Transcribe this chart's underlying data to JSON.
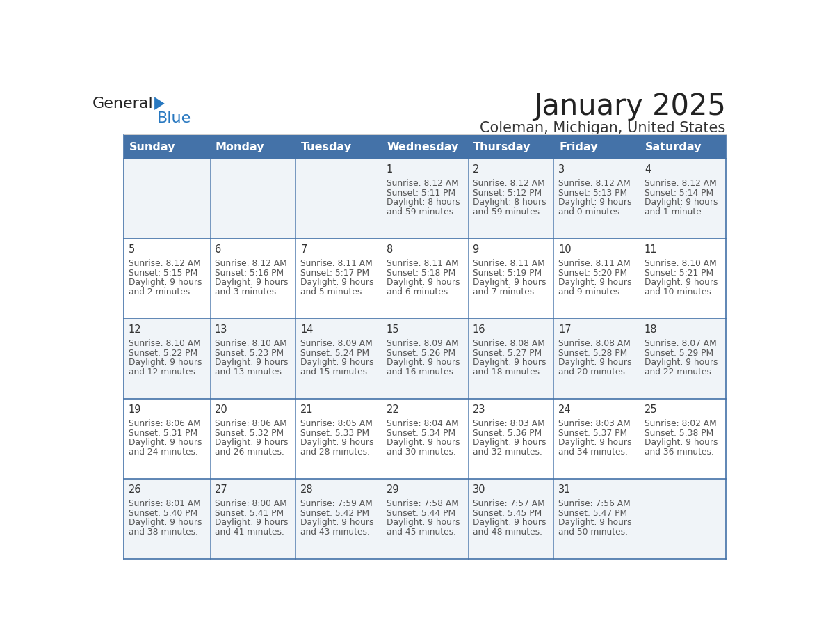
{
  "title": "January 2025",
  "subtitle": "Coleman, Michigan, United States",
  "header_bg_color": "#4472a8",
  "header_text_color": "#ffffff",
  "cell_bg_color_odd": "#f0f4f8",
  "cell_bg_color_even": "#ffffff",
  "grid_line_color": "#4472a8",
  "day_number_color": "#333333",
  "cell_text_color": "#555555",
  "title_color": "#222222",
  "subtitle_color": "#333333",
  "logo_general_color": "#222222",
  "logo_blue_color": "#2878c0",
  "logo_triangle_color": "#2878c0",
  "days_of_week": [
    "Sunday",
    "Monday",
    "Tuesday",
    "Wednesday",
    "Thursday",
    "Friday",
    "Saturday"
  ],
  "calendar_data": [
    [
      null,
      null,
      null,
      {
        "day": 1,
        "sunrise": "8:12 AM",
        "sunset": "5:11 PM",
        "daylight_h": "8 hours",
        "daylight_m": "and 59 minutes."
      },
      {
        "day": 2,
        "sunrise": "8:12 AM",
        "sunset": "5:12 PM",
        "daylight_h": "8 hours",
        "daylight_m": "and 59 minutes."
      },
      {
        "day": 3,
        "sunrise": "8:12 AM",
        "sunset": "5:13 PM",
        "daylight_h": "9 hours",
        "daylight_m": "and 0 minutes."
      },
      {
        "day": 4,
        "sunrise": "8:12 AM",
        "sunset": "5:14 PM",
        "daylight_h": "9 hours",
        "daylight_m": "and 1 minute."
      }
    ],
    [
      {
        "day": 5,
        "sunrise": "8:12 AM",
        "sunset": "5:15 PM",
        "daylight_h": "9 hours",
        "daylight_m": "and 2 minutes."
      },
      {
        "day": 6,
        "sunrise": "8:12 AM",
        "sunset": "5:16 PM",
        "daylight_h": "9 hours",
        "daylight_m": "and 3 minutes."
      },
      {
        "day": 7,
        "sunrise": "8:11 AM",
        "sunset": "5:17 PM",
        "daylight_h": "9 hours",
        "daylight_m": "and 5 minutes."
      },
      {
        "day": 8,
        "sunrise": "8:11 AM",
        "sunset": "5:18 PM",
        "daylight_h": "9 hours",
        "daylight_m": "and 6 minutes."
      },
      {
        "day": 9,
        "sunrise": "8:11 AM",
        "sunset": "5:19 PM",
        "daylight_h": "9 hours",
        "daylight_m": "and 7 minutes."
      },
      {
        "day": 10,
        "sunrise": "8:11 AM",
        "sunset": "5:20 PM",
        "daylight_h": "9 hours",
        "daylight_m": "and 9 minutes."
      },
      {
        "day": 11,
        "sunrise": "8:10 AM",
        "sunset": "5:21 PM",
        "daylight_h": "9 hours",
        "daylight_m": "and 10 minutes."
      }
    ],
    [
      {
        "day": 12,
        "sunrise": "8:10 AM",
        "sunset": "5:22 PM",
        "daylight_h": "9 hours",
        "daylight_m": "and 12 minutes."
      },
      {
        "day": 13,
        "sunrise": "8:10 AM",
        "sunset": "5:23 PM",
        "daylight_h": "9 hours",
        "daylight_m": "and 13 minutes."
      },
      {
        "day": 14,
        "sunrise": "8:09 AM",
        "sunset": "5:24 PM",
        "daylight_h": "9 hours",
        "daylight_m": "and 15 minutes."
      },
      {
        "day": 15,
        "sunrise": "8:09 AM",
        "sunset": "5:26 PM",
        "daylight_h": "9 hours",
        "daylight_m": "and 16 minutes."
      },
      {
        "day": 16,
        "sunrise": "8:08 AM",
        "sunset": "5:27 PM",
        "daylight_h": "9 hours",
        "daylight_m": "and 18 minutes."
      },
      {
        "day": 17,
        "sunrise": "8:08 AM",
        "sunset": "5:28 PM",
        "daylight_h": "9 hours",
        "daylight_m": "and 20 minutes."
      },
      {
        "day": 18,
        "sunrise": "8:07 AM",
        "sunset": "5:29 PM",
        "daylight_h": "9 hours",
        "daylight_m": "and 22 minutes."
      }
    ],
    [
      {
        "day": 19,
        "sunrise": "8:06 AM",
        "sunset": "5:31 PM",
        "daylight_h": "9 hours",
        "daylight_m": "and 24 minutes."
      },
      {
        "day": 20,
        "sunrise": "8:06 AM",
        "sunset": "5:32 PM",
        "daylight_h": "9 hours",
        "daylight_m": "and 26 minutes."
      },
      {
        "day": 21,
        "sunrise": "8:05 AM",
        "sunset": "5:33 PM",
        "daylight_h": "9 hours",
        "daylight_m": "and 28 minutes."
      },
      {
        "day": 22,
        "sunrise": "8:04 AM",
        "sunset": "5:34 PM",
        "daylight_h": "9 hours",
        "daylight_m": "and 30 minutes."
      },
      {
        "day": 23,
        "sunrise": "8:03 AM",
        "sunset": "5:36 PM",
        "daylight_h": "9 hours",
        "daylight_m": "and 32 minutes."
      },
      {
        "day": 24,
        "sunrise": "8:03 AM",
        "sunset": "5:37 PM",
        "daylight_h": "9 hours",
        "daylight_m": "and 34 minutes."
      },
      {
        "day": 25,
        "sunrise": "8:02 AM",
        "sunset": "5:38 PM",
        "daylight_h": "9 hours",
        "daylight_m": "and 36 minutes."
      }
    ],
    [
      {
        "day": 26,
        "sunrise": "8:01 AM",
        "sunset": "5:40 PM",
        "daylight_h": "9 hours",
        "daylight_m": "and 38 minutes."
      },
      {
        "day": 27,
        "sunrise": "8:00 AM",
        "sunset": "5:41 PM",
        "daylight_h": "9 hours",
        "daylight_m": "and 41 minutes."
      },
      {
        "day": 28,
        "sunrise": "7:59 AM",
        "sunset": "5:42 PM",
        "daylight_h": "9 hours",
        "daylight_m": "and 43 minutes."
      },
      {
        "day": 29,
        "sunrise": "7:58 AM",
        "sunset": "5:44 PM",
        "daylight_h": "9 hours",
        "daylight_m": "and 45 minutes."
      },
      {
        "day": 30,
        "sunrise": "7:57 AM",
        "sunset": "5:45 PM",
        "daylight_h": "9 hours",
        "daylight_m": "and 48 minutes."
      },
      {
        "day": 31,
        "sunrise": "7:56 AM",
        "sunset": "5:47 PM",
        "daylight_h": "9 hours",
        "daylight_m": "and 50 minutes."
      },
      null
    ]
  ]
}
